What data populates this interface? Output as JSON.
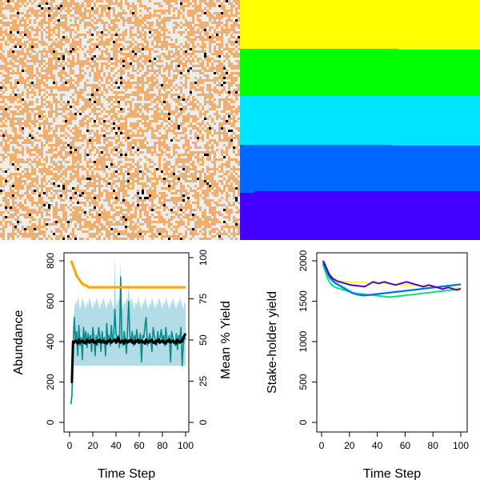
{
  "colors": {
    "land_cream": "#ededeb",
    "land_tan": "#edb072",
    "animal": "#000000",
    "band_yellow": "#ffff00",
    "band_green": "#00ff00",
    "band_cyan": "#00e5ff",
    "band_blue": "#0066ff",
    "band_violet": "#4400ff",
    "abundance_band": "#b3dde6",
    "abundance_line": "#0a8a8a",
    "mean_line": "#000000",
    "yield_line": "#ffa500",
    "stake_1": "#ffff33",
    "stake_2": "#00e676",
    "stake_3": "#00e5ee",
    "stake_4": "#0066ff",
    "stake_5": "#5200cc"
  },
  "chart_data": [
    {
      "type": "heatmap",
      "panel": "landscape_resource_map",
      "description": "grid of land cells with scattered resource individuals",
      "grid_rows": 100,
      "grid_cols": 100
    },
    {
      "type": "heatmap",
      "panel": "ownership_map",
      "bands": [
        "yellow",
        "green",
        "cyan",
        "blue",
        "violet"
      ]
    },
    {
      "type": "line",
      "panel": "abundance_yield",
      "xlabel": "Time Step",
      "ylabel": "Abundance",
      "ylabel_right": "Mean % Yield",
      "xlim": [
        0,
        100
      ],
      "ylim": [
        0,
        820
      ],
      "ylim_right": [
        0,
        102
      ],
      "xticks": [
        "0",
        "20",
        "40",
        "60",
        "80",
        "100"
      ],
      "yticks": [
        "0",
        "200",
        "400",
        "600",
        "800"
      ],
      "yticks_right": [
        "0",
        "25",
        "50",
        "75",
        "100"
      ],
      "series": [
        {
          "key": "abundance_sim",
          "x_start": 1,
          "values": [
            90,
            130,
            370,
            520,
            410,
            450,
            330,
            480,
            380,
            420,
            310,
            470,
            400,
            450,
            370,
            440,
            400,
            430,
            350,
            470,
            420,
            330,
            430,
            380,
            470,
            430,
            350,
            450,
            390,
            420,
            330,
            490,
            410,
            430,
            380,
            480,
            400,
            420,
            560,
            440,
            400,
            430,
            370,
            720,
            420,
            380,
            450,
            410,
            340,
            470,
            600,
            420,
            400,
            450,
            380,
            430,
            410,
            460,
            390,
            400,
            440,
            300,
            430,
            420,
            480,
            520,
            380,
            400,
            440,
            410,
            350,
            470,
            430,
            410,
            380,
            450,
            390,
            420,
            460,
            400,
            430,
            380,
            470,
            410,
            400,
            430,
            300,
            450,
            420,
            400,
            380,
            440,
            360,
            430,
            410,
            470,
            280,
            380,
            430,
            410
          ]
        },
        {
          "key": "mean_line",
          "x_start": 1,
          "values": [
            200,
            200,
            400,
            395,
            405,
            400,
            390,
            410,
            395,
            400,
            405,
            395,
            400,
            390,
            410,
            400,
            395,
            405,
            400,
            410,
            395,
            400,
            390,
            405,
            400,
            410,
            395,
            400,
            405,
            395,
            400,
            390,
            405,
            400,
            410,
            395,
            400,
            405,
            410,
            395,
            400,
            420,
            400,
            395,
            405,
            400,
            390,
            410,
            400,
            395,
            405,
            400,
            410,
            395,
            400,
            390,
            405,
            400,
            410,
            395,
            400,
            405,
            395,
            400,
            390,
            410,
            400,
            395,
            405,
            400,
            410,
            395,
            400,
            390,
            405,
            400,
            410,
            395,
            400,
            405,
            395,
            400,
            390,
            405,
            400,
            410,
            395,
            400,
            405,
            395,
            400,
            390,
            410,
            400,
            395,
            405,
            400,
            420,
            430,
            440
          ]
        },
        {
          "key": "mean_pct_yield",
          "axis": "right",
          "x_start": 1,
          "values": [
            98,
            97,
            95,
            93,
            91,
            89,
            88,
            87,
            86,
            85,
            84,
            84,
            83,
            83,
            83,
            82,
            82,
            82,
            82,
            82,
            82,
            82,
            82,
            82,
            82,
            82,
            82,
            82,
            82,
            82,
            82,
            82,
            82,
            82,
            82,
            82,
            82,
            82,
            82,
            82,
            82,
            82,
            82,
            82,
            82,
            82,
            82,
            82,
            82,
            82,
            82,
            82,
            82,
            82,
            82,
            82,
            82,
            82,
            82,
            82,
            82,
            82,
            82,
            82,
            82,
            82,
            82,
            82,
            82,
            82,
            82,
            82,
            82,
            82,
            82,
            82,
            82,
            82,
            82,
            82,
            82,
            82,
            82,
            82,
            82,
            82,
            82,
            82,
            82,
            82,
            82,
            82,
            82,
            82,
            82,
            82,
            82,
            82,
            82,
            82
          ]
        }
      ],
      "band": {
        "x_start": 1,
        "lower": [
          90,
          100,
          260,
          280,
          280,
          280,
          280,
          280,
          280,
          280,
          280,
          280,
          280,
          280,
          280,
          280,
          280,
          280,
          280,
          280,
          280,
          280,
          280,
          280,
          280,
          280,
          280,
          280,
          280,
          280,
          280,
          280,
          280,
          280,
          280,
          280,
          280,
          280,
          280,
          280,
          280,
          280,
          280,
          280,
          280,
          280,
          280,
          280,
          280,
          280,
          280,
          280,
          280,
          280,
          280,
          280,
          280,
          280,
          280,
          280,
          280,
          280,
          280,
          280,
          280,
          280,
          280,
          280,
          280,
          280,
          280,
          280,
          280,
          280,
          280,
          280,
          280,
          280,
          280,
          280,
          280,
          280,
          280,
          280,
          280,
          280,
          280,
          280,
          280,
          280,
          280,
          280,
          280,
          280,
          280,
          280,
          280,
          280,
          280,
          280
        ],
        "upper": [
          120,
          160,
          480,
          560,
          600,
          580,
          620,
          600,
          560,
          580,
          620,
          600,
          580,
          560,
          600,
          580,
          620,
          600,
          580,
          560,
          600,
          580,
          620,
          600,
          580,
          560,
          600,
          580,
          620,
          600,
          580,
          560,
          600,
          580,
          620,
          600,
          580,
          560,
          820,
          600,
          580,
          620,
          600,
          800,
          580,
          560,
          600,
          580,
          620,
          600,
          700,
          580,
          620,
          600,
          580,
          560,
          600,
          580,
          620,
          600,
          580,
          560,
          600,
          580,
          620,
          600,
          580,
          560,
          600,
          580,
          620,
          600,
          580,
          560,
          600,
          580,
          620,
          600,
          580,
          560,
          600,
          580,
          620,
          600,
          580,
          560,
          600,
          580,
          620,
          600,
          580,
          560,
          600,
          580,
          620,
          600,
          580,
          560,
          600,
          580
        ]
      }
    },
    {
      "type": "line",
      "panel": "stakeholder_yield",
      "xlabel": "Time Step",
      "ylabel": "Stake-holder yield",
      "xlim": [
        0,
        100
      ],
      "ylim": [
        0,
        2050
      ],
      "xticks": [
        "0",
        "20",
        "40",
        "60",
        "80",
        "100"
      ],
      "yticks": [
        "0",
        "500",
        "1000",
        "1500",
        "2000"
      ],
      "series": [
        {
          "key": "s1",
          "x_start": 1,
          "values": [
            2010,
            1980,
            1940,
            1900,
            1860,
            1830,
            1810,
            1790,
            1780,
            1770,
            1760,
            1755,
            1750,
            1748,
            1746,
            1745,
            1744,
            1743,
            1742,
            1741,
            1740,
            1740,
            1739,
            1738,
            1737,
            1736,
            1736,
            1735,
            1734,
            1733,
            1732,
            1731,
            1730,
            1729,
            1728,
            1727,
            1726,
            1725,
            1724,
            1723,
            1722,
            1721,
            1720,
            1719,
            1718,
            1717,
            1716,
            1715,
            1714,
            1713,
            1712,
            1711,
            1710,
            1709,
            1708,
            1707,
            1706,
            1705,
            1704,
            1703,
            1702,
            1701,
            1700,
            1699,
            1698,
            1697,
            1696,
            1695,
            1694,
            1693,
            1692,
            1691,
            1690,
            1689,
            1688,
            1687,
            1686,
            1685,
            1684,
            1683,
            1682,
            1681,
            1680,
            1679,
            1678,
            1677,
            1676,
            1675,
            1674,
            1673,
            1672,
            1671,
            1670,
            1669,
            1668,
            1667,
            1666,
            1665,
            1664,
            1663
          ]
        },
        {
          "key": "s2",
          "x_start": 1,
          "values": [
            1950,
            1900,
            1850,
            1800,
            1760,
            1730,
            1710,
            1690,
            1680,
            1670,
            1665,
            1660,
            1655,
            1650,
            1645,
            1640,
            1635,
            1630,
            1625,
            1620,
            1615,
            1610,
            1605,
            1600,
            1598,
            1596,
            1594,
            1592,
            1590,
            1588,
            1586,
            1584,
            1582,
            1580,
            1578,
            1576,
            1574,
            1572,
            1570,
            1568,
            1566,
            1564,
            1562,
            1560,
            1558,
            1556,
            1554,
            1552,
            1550,
            1552,
            1554,
            1556,
            1558,
            1560,
            1562,
            1564,
            1566,
            1568,
            1570,
            1572,
            1574,
            1576,
            1578,
            1580,
            1582,
            1584,
            1586,
            1588,
            1590,
            1592,
            1594,
            1596,
            1598,
            1600,
            1602,
            1604,
            1606,
            1608,
            1610,
            1612,
            1614,
            1616,
            1618,
            1620,
            1622,
            1624,
            1626,
            1628,
            1630,
            1632,
            1634,
            1636,
            1638,
            1640,
            1642,
            1644,
            1646,
            1648,
            1650,
            1652
          ]
        },
        {
          "key": "s3",
          "x_start": 1,
          "values": [
            1980,
            1950,
            1910,
            1870,
            1830,
            1800,
            1780,
            1760,
            1745,
            1730,
            1720,
            1710,
            1700,
            1690,
            1680,
            1670,
            1660,
            1650,
            1640,
            1630,
            1620,
            1610,
            1600,
            1595,
            1590,
            1585,
            1580,
            1575,
            1570,
            1570,
            1572,
            1574,
            1576,
            1578,
            1580,
            1582,
            1584,
            1586,
            1588,
            1590,
            1592,
            1594,
            1596,
            1598,
            1600,
            1602,
            1604,
            1606,
            1608,
            1610,
            1612,
            1614,
            1616,
            1618,
            1620,
            1622,
            1624,
            1626,
            1628,
            1630,
            1632,
            1634,
            1636,
            1638,
            1640,
            1642,
            1644,
            1646,
            1648,
            1650,
            1652,
            1654,
            1656,
            1658,
            1660,
            1662,
            1664,
            1666,
            1668,
            1670,
            1672,
            1674,
            1676,
            1678,
            1680,
            1682,
            1684,
            1686,
            1688,
            1690,
            1692,
            1694,
            1696,
            1698,
            1700,
            1702,
            1704,
            1706,
            1708,
            1710
          ]
        },
        {
          "key": "s4",
          "x_start": 1,
          "values": [
            1970,
            1940,
            1900,
            1860,
            1820,
            1790,
            1770,
            1750,
            1735,
            1720,
            1710,
            1700,
            1690,
            1680,
            1670,
            1660,
            1650,
            1640,
            1630,
            1620,
            1610,
            1600,
            1595,
            1590,
            1585,
            1580,
            1578,
            1576,
            1574,
            1572,
            1570,
            1572,
            1574,
            1576,
            1578,
            1580,
            1582,
            1584,
            1586,
            1588,
            1590,
            1592,
            1594,
            1596,
            1598,
            1600,
            1602,
            1604,
            1606,
            1608,
            1610,
            1612,
            1614,
            1616,
            1618,
            1620,
            1622,
            1624,
            1626,
            1628,
            1630,
            1632,
            1634,
            1636,
            1638,
            1640,
            1642,
            1644,
            1646,
            1648,
            1650,
            1652,
            1654,
            1656,
            1658,
            1660,
            1662,
            1664,
            1666,
            1668,
            1670,
            1672,
            1674,
            1676,
            1678,
            1680,
            1682,
            1684,
            1686,
            1688,
            1690,
            1692,
            1694,
            1696,
            1698,
            1700,
            1702,
            1704,
            1706,
            1708
          ]
        },
        {
          "key": "s5",
          "x_start": 1,
          "values": [
            2000,
            1970,
            1930,
            1890,
            1850,
            1820,
            1800,
            1780,
            1770,
            1760,
            1750,
            1745,
            1740,
            1735,
            1730,
            1725,
            1720,
            1715,
            1710,
            1705,
            1700,
            1698,
            1696,
            1694,
            1692,
            1690,
            1688,
            1686,
            1684,
            1682,
            1680,
            1690,
            1700,
            1710,
            1720,
            1730,
            1740,
            1735,
            1730,
            1725,
            1720,
            1725,
            1730,
            1735,
            1740,
            1735,
            1730,
            1725,
            1720,
            1715,
            1710,
            1705,
            1700,
            1705,
            1710,
            1715,
            1720,
            1725,
            1730,
            1735,
            1740,
            1735,
            1730,
            1725,
            1720,
            1715,
            1710,
            1705,
            1700,
            1695,
            1690,
            1685,
            1680,
            1685,
            1690,
            1695,
            1700,
            1695,
            1690,
            1685,
            1680,
            1675,
            1670,
            1665,
            1660,
            1655,
            1650,
            1655,
            1660,
            1665,
            1670,
            1665,
            1660,
            1655,
            1650,
            1645,
            1640,
            1645,
            1650,
            1655
          ]
        }
      ]
    }
  ]
}
